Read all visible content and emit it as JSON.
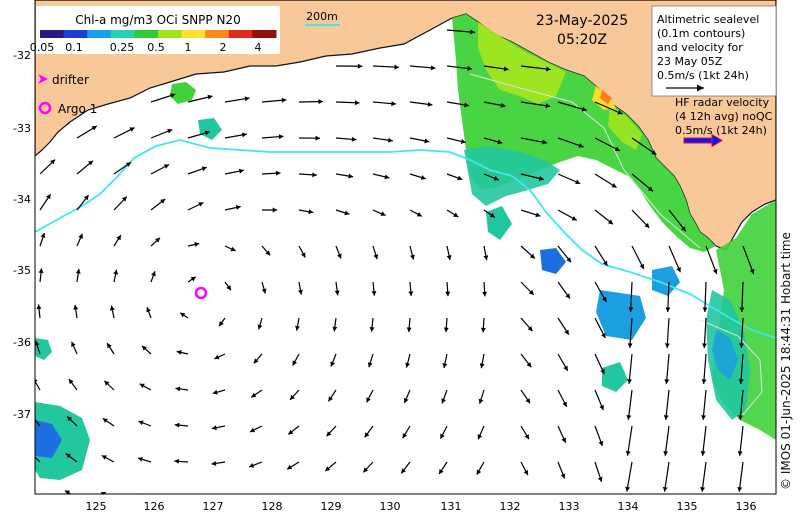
{
  "colorbar": {
    "title": "Chl-a mg/m3 OCi SNPP N20",
    "ticks": [
      "0.05",
      "0.1",
      "0.25",
      "0.5",
      "1",
      "2",
      "4"
    ],
    "colors": [
      "#2b1784",
      "#1d3fd0",
      "#1aa0e6",
      "#22d3b4",
      "#31c93a",
      "#9fe21c",
      "#ffe02a",
      "#ff8a1a",
      "#e0281c",
      "#8e1208"
    ]
  },
  "isobath_label": "200m",
  "datetime": {
    "date": "23-May-2025",
    "time": "05:20Z"
  },
  "altimetry_legend": [
    "Altimetric sealevel",
    "(0.1m contours)",
    "and velocity for",
    "23 May 05Z",
    "0.5m/s (1kt 24h)"
  ],
  "hf_radar_legend": [
    "HF radar velocity",
    "(4 12h avg) noQC",
    "0.5m/s (1kt 24h)"
  ],
  "symbol_legend": {
    "drifter": "drifter",
    "argo": "Argo 1"
  },
  "axes": {
    "lat_labels": [
      "-32",
      "-33",
      "-34",
      "-35",
      "-36",
      "-37"
    ],
    "lon_labels": [
      "125",
      "126",
      "127",
      "128",
      "129",
      "130",
      "131",
      "132",
      "133",
      "134",
      "135",
      "136"
    ]
  },
  "credit": "© IMOS 01-Jun-2025 18:44:31 Hobart time",
  "colors": {
    "land": "#f8c898",
    "isobath": "#40e8e8",
    "drifter": "#ff00ff",
    "argo": "#ff00ff",
    "hf_arrow": "#1010ff",
    "hf_arrow_edge": "#e81010"
  }
}
